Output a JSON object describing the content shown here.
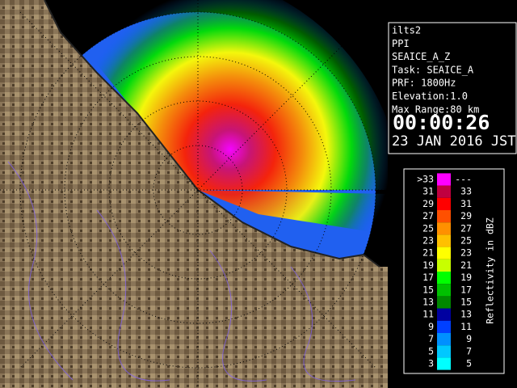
{
  "info": {
    "lines": [
      "ilts2",
      "PPI",
      "SEAICE_A_Z",
      "Task: SEAICE_A",
      "PRF: 1800Hz",
      "Elevation:1.0",
      "Max Range:80 km"
    ],
    "time": "00:00:26",
    "date": "23 JAN 2016 JST"
  },
  "legend": {
    "title": "Reflectivity in dBZ",
    "rows": [
      {
        "low": ">33",
        "high": "---",
        "color": "#ff00ff"
      },
      {
        "low": "31",
        "high": "33",
        "color": "#c00040"
      },
      {
        "low": "29",
        "high": "31",
        "color": "#ff0000"
      },
      {
        "low": "27",
        "high": "29",
        "color": "#ff5000"
      },
      {
        "low": "25",
        "high": "27",
        "color": "#ff9000"
      },
      {
        "low": "23",
        "high": "25",
        "color": "#ffc000"
      },
      {
        "low": "21",
        "high": "23",
        "color": "#ffff00"
      },
      {
        "low": "19",
        "high": "21",
        "color": "#c8ff00"
      },
      {
        "low": "17",
        "high": "19",
        "color": "#00ff00"
      },
      {
        "low": "15",
        "high": "17",
        "color": "#00c000"
      },
      {
        "low": "13",
        "high": "15",
        "color": "#008800"
      },
      {
        "low": "11",
        "high": "13",
        "color": "#0000a0"
      },
      {
        "low": "9",
        "high": "11",
        "color": "#0040ff"
      },
      {
        "low": "7",
        "high": "9",
        "color": "#0090ff"
      },
      {
        "low": "5",
        "high": "7",
        "color": "#00c8ff"
      },
      {
        "low": "3",
        "high": "5",
        "color": "#00ffff"
      }
    ]
  }
}
